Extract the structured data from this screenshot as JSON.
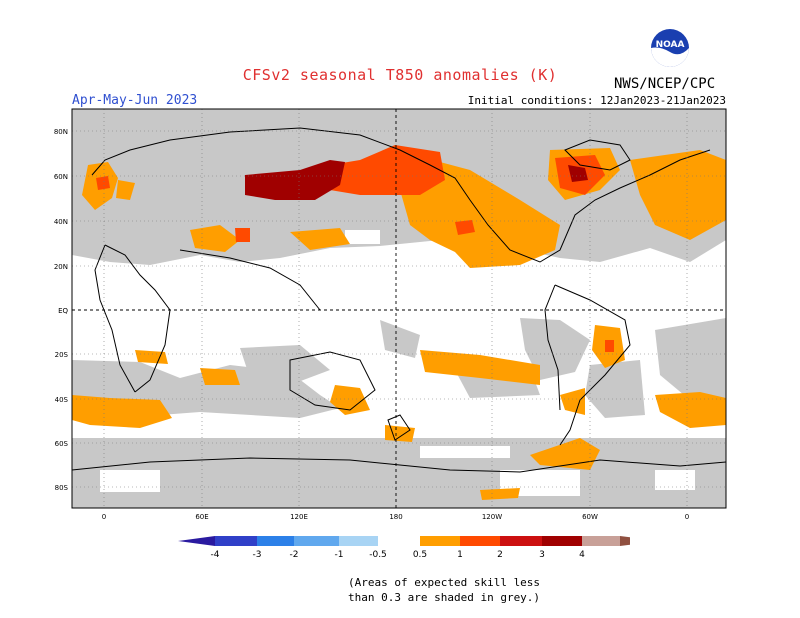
{
  "title": "CFSv2 seasonal T850 anomalies (K)",
  "agency": "NWS/NCEP/CPC",
  "season": "Apr-May-Jun 2023",
  "initial_conditions": "Initial conditions: 12Jan2023-21Jan2023",
  "logo_text": "NOAA",
  "map": {
    "lat_labels": [
      "80N",
      "60N",
      "40N",
      "20N",
      "EQ",
      "20S",
      "40S",
      "60S",
      "80S"
    ],
    "lon_labels": [
      "0",
      "60E",
      "120E",
      "180",
      "120W",
      "60W",
      "0"
    ],
    "colors": {
      "ocean": "#ffffff",
      "low_skill": "#c8c8c8",
      "coast": "#000000"
    }
  },
  "colorbar": {
    "tick_labels": [
      "-4",
      "-3",
      "-2",
      "-1",
      "-0.5",
      "0.5",
      "1",
      "2",
      "3",
      "4"
    ],
    "colors": [
      "#2a1aa0",
      "#3040c8",
      "#2c80e8",
      "#60a8ee",
      "#a8d4f4",
      "#ffffff",
      "#ff9e00",
      "#ff4a00",
      "#cc1010",
      "#a00000",
      "#c8a098",
      "#905040"
    ]
  },
  "note_lines": [
    "(Areas of expected skill less",
    "than 0.3 are shaded in grey.)"
  ]
}
